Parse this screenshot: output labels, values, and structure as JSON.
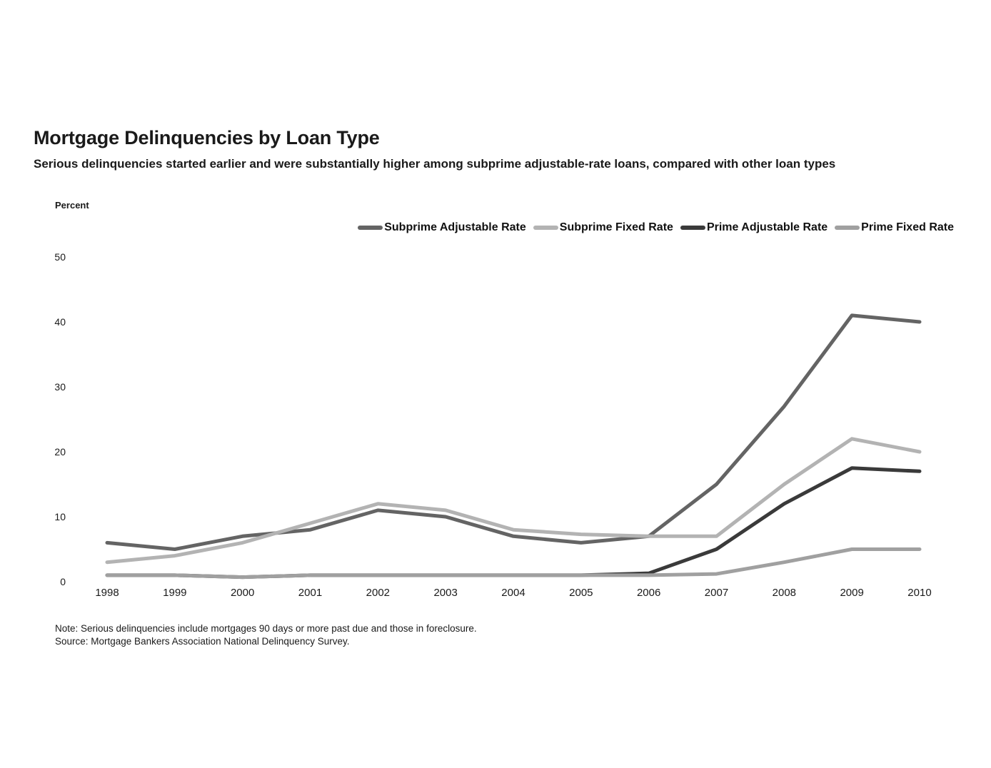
{
  "header": {
    "title": "Mortgage Delinquencies by Loan Type",
    "subtitle": "Serious delinquencies started earlier and were substantially higher among subprime adjustable-rate loans, compared with other loan types"
  },
  "chart_data": {
    "type": "line",
    "title": "Mortgage Delinquencies by Loan Type",
    "ylabel": "Percent",
    "xlabel": "",
    "x": [
      1998,
      1999,
      2000,
      2001,
      2002,
      2003,
      2004,
      2005,
      2006,
      2007,
      2008,
      2009,
      2010
    ],
    "yticks": [
      0,
      10,
      20,
      30,
      40,
      50
    ],
    "ylim": [
      0,
      50
    ],
    "grid": false,
    "legend_position": "top-right",
    "series": [
      {
        "name": "Subprime Adjustable Rate",
        "color": "#646464",
        "values": [
          6,
          5,
          7,
          8,
          11,
          10,
          7,
          6,
          7,
          15,
          27,
          41,
          40
        ]
      },
      {
        "name": "Subprime Fixed Rate",
        "color": "#b3b3b3",
        "values": [
          3,
          4,
          6,
          9,
          12,
          11,
          8,
          7.3,
          7,
          7,
          15,
          22,
          20
        ]
      },
      {
        "name": "Prime Adjustable Rate",
        "color": "#3a3a3a",
        "values": [
          1,
          1,
          0.7,
          1,
          1,
          1,
          1,
          1,
          1.3,
          5,
          12,
          17.5,
          17
        ]
      },
      {
        "name": "Prime Fixed Rate",
        "color": "#a0a0a0",
        "values": [
          1,
          1,
          0.7,
          1,
          1,
          1,
          1,
          1,
          1,
          1.2,
          3,
          5,
          5
        ]
      }
    ]
  },
  "footer": {
    "note": "Note: Serious delinquencies include mortgages 90 days or more past due and those in foreclosure.",
    "source": "Source: Mortgage Bankers Association National Delinquency Survey."
  }
}
